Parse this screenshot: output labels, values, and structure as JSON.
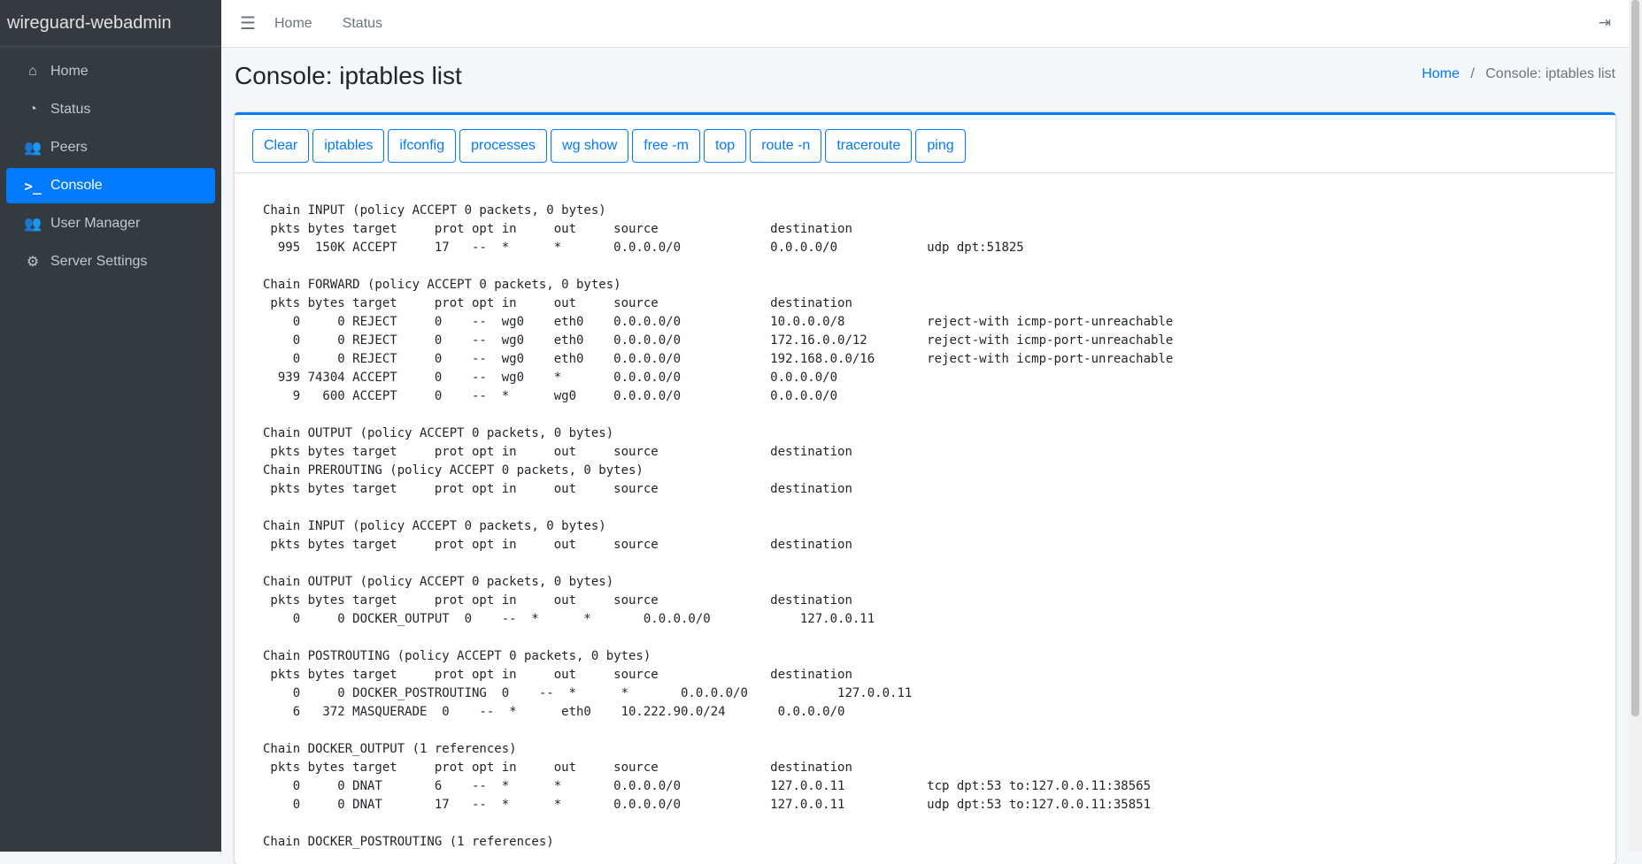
{
  "brand": "wireguard-webadmin",
  "sidebar": {
    "items": [
      {
        "label": "Home",
        "icon": "home-icon"
      },
      {
        "label": "Status",
        "icon": "tachometer-icon"
      },
      {
        "label": "Peers",
        "icon": "users-icon"
      },
      {
        "label": "Console",
        "icon": "terminal-icon",
        "active": true
      },
      {
        "label": "User Manager",
        "icon": "user-group-icon"
      },
      {
        "label": "Server Settings",
        "icon": "cogs-icon"
      }
    ]
  },
  "topbar": {
    "links": [
      "Home",
      "Status"
    ]
  },
  "page": {
    "title": "Console: iptables list",
    "breadcrumb": {
      "home": "Home",
      "separator": "/",
      "current": "Console: iptables list"
    }
  },
  "toolbar": {
    "buttons": [
      "Clear",
      "iptables",
      "ifconfig",
      "processes",
      "wg show",
      "free -m",
      "top",
      "route -n",
      "traceroute",
      "ping"
    ]
  },
  "console": {
    "output": "Chain INPUT (policy ACCEPT 0 packets, 0 bytes)\n pkts bytes target     prot opt in     out     source               destination\n  995  150K ACCEPT     17   --  *      *       0.0.0.0/0            0.0.0.0/0            udp dpt:51825\n\nChain FORWARD (policy ACCEPT 0 packets, 0 bytes)\n pkts bytes target     prot opt in     out     source               destination\n    0     0 REJECT     0    --  wg0    eth0    0.0.0.0/0            10.0.0.0/8           reject-with icmp-port-unreachable\n    0     0 REJECT     0    --  wg0    eth0    0.0.0.0/0            172.16.0.0/12        reject-with icmp-port-unreachable\n    0     0 REJECT     0    --  wg0    eth0    0.0.0.0/0            192.168.0.0/16       reject-with icmp-port-unreachable\n  939 74304 ACCEPT     0    --  wg0    *       0.0.0.0/0            0.0.0.0/0\n    9   600 ACCEPT     0    --  *      wg0     0.0.0.0/0            0.0.0.0/0\n\nChain OUTPUT (policy ACCEPT 0 packets, 0 bytes)\n pkts bytes target     prot opt in     out     source               destination\nChain PREROUTING (policy ACCEPT 0 packets, 0 bytes)\n pkts bytes target     prot opt in     out     source               destination\n\nChain INPUT (policy ACCEPT 0 packets, 0 bytes)\n pkts bytes target     prot opt in     out     source               destination\n\nChain OUTPUT (policy ACCEPT 0 packets, 0 bytes)\n pkts bytes target     prot opt in     out     source               destination\n    0     0 DOCKER_OUTPUT  0    --  *      *       0.0.0.0/0            127.0.0.11\n\nChain POSTROUTING (policy ACCEPT 0 packets, 0 bytes)\n pkts bytes target     prot opt in     out     source               destination\n    0     0 DOCKER_POSTROUTING  0    --  *      *       0.0.0.0/0            127.0.0.11\n    6   372 MASQUERADE  0    --  *      eth0    10.222.90.0/24       0.0.0.0/0\n\nChain DOCKER_OUTPUT (1 references)\n pkts bytes target     prot opt in     out     source               destination\n    0     0 DNAT       6    --  *      *       0.0.0.0/0            127.0.0.11           tcp dpt:53 to:127.0.0.11:38565\n    0     0 DNAT       17   --  *      *       0.0.0.0/0            127.0.0.11           udp dpt:53 to:127.0.0.11:35851\n\nChain DOCKER_POSTROUTING (1 references)"
  }
}
